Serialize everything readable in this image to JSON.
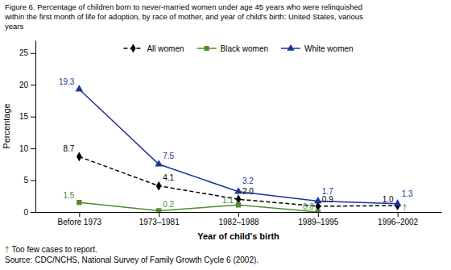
{
  "chart_data": {
    "type": "line",
    "title": [
      "Figure 6. Percentage of children born to never-married women under age 45 years who were relinquished",
      "within the first month of life for adoption, by race of mother, and year of child's birth: United States, various",
      "years"
    ],
    "xlabel": "Year of child's birth",
    "ylabel": "Percentage",
    "categories": [
      "Before 1973",
      "1973–1981",
      "1982–1988",
      "1989–1995",
      "1996–2002"
    ],
    "series": [
      {
        "name": "All women",
        "color": "#000000",
        "line_style": "dashed",
        "marker": "diamond",
        "values": [
          8.7,
          4.1,
          2.0,
          0.9,
          1.0
        ],
        "value_labels": [
          "8.7",
          "4.1",
          "2.0",
          "0.9",
          "1.0"
        ]
      },
      {
        "name": "Black women",
        "color": "#4d8c2a",
        "line_style": "solid",
        "marker": "square",
        "values": [
          1.5,
          0.2,
          1.1,
          0.0,
          null
        ],
        "value_labels": [
          "1.5",
          "0.2",
          "1.1",
          "0.0",
          null
        ]
      },
      {
        "name": "White women",
        "color": "#1a3399",
        "line_style": "solid",
        "marker": "triangle-up",
        "values": [
          19.3,
          7.5,
          3.2,
          1.7,
          1.3
        ],
        "value_labels": [
          "19.3",
          "7.5",
          "3.2",
          "1.7",
          "1.3"
        ]
      }
    ],
    "ylim": [
      0,
      27
    ],
    "yticks": [
      0,
      5,
      10,
      15,
      20,
      25
    ],
    "grid": false,
    "legend": "top",
    "data_labels": true,
    "annotations": [
      {
        "text": "†",
        "x": "1996–2002",
        "y": 0,
        "color": "#4d8c2a"
      },
      {
        "text": "†",
        "color": "#4d8c2a"
      },
      {
        "text": "Too few cases to report."
      },
      {
        "text": "Source: CDC/NCHS, National Survey of Family Growth Cycle 6 (2002)."
      }
    ]
  }
}
